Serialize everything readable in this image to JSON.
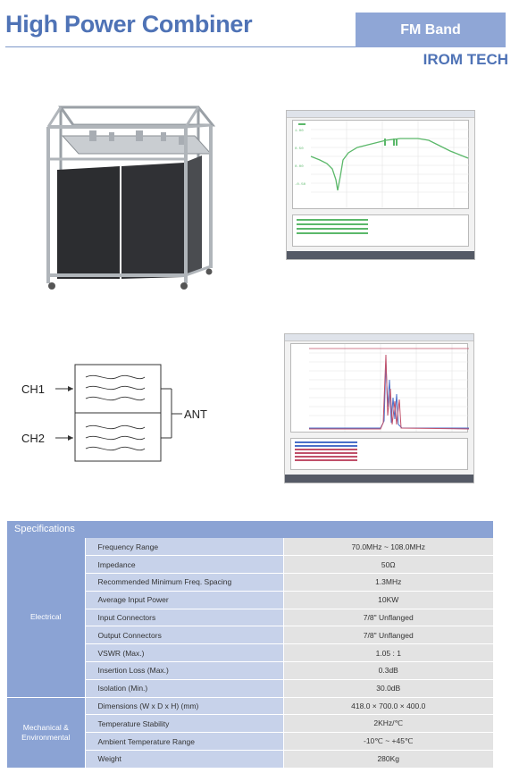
{
  "header": {
    "title": "High Power Combiner",
    "band": "FM Band",
    "company": "IROM TECH"
  },
  "diagram": {
    "ch1": "CH1",
    "ch2": "CH2",
    "ant": "ANT"
  },
  "specifications": {
    "title": "Specifications",
    "groups": [
      {
        "name": "Electrical",
        "rows": [
          {
            "param": "Frequency Range",
            "value": "70.0MHz ~ 108.0MHz"
          },
          {
            "param": "Impedance",
            "value": "50Ω"
          },
          {
            "param": "Recommended Minimum Freq. Spacing",
            "value": "1.3MHz"
          },
          {
            "param": "Average Input Power",
            "value": "10KW"
          },
          {
            "param": "Input Connectors",
            "value": "7/8\" Unflanged"
          },
          {
            "param": "Output Connectors",
            "value": "7/8\" Unflanged"
          },
          {
            "param": "VSWR (Max.)",
            "value": "1.05 : 1"
          },
          {
            "param": "Insertion Loss (Max.)",
            "value": "0.3dB"
          },
          {
            "param": "Isolation (Min.)",
            "value": "30.0dB"
          }
        ]
      },
      {
        "name": "Mechanical & Environmental",
        "rows": [
          {
            "param": "Dimensions (W x D x H) (mm)",
            "value": "418.0 × 700.0 × 400.0"
          },
          {
            "param": "Temperature Stability",
            "value": "2KHz/℃"
          },
          {
            "param": "Ambient Temperature Range",
            "value": "-10℃ ~ +45℃"
          },
          {
            "param": "Weight",
            "value": "280Kg"
          }
        ]
      }
    ]
  },
  "colors": {
    "accent": "#4f73b6",
    "band_bg": "#8fa6d6",
    "table_group": "#8ba3d4",
    "table_param": "#c7d2ea",
    "table_value": "#e3e3e3",
    "trace_green": "#5bb86a",
    "trace_red": "#c0506a",
    "trace_blue": "#4a6fc9"
  }
}
